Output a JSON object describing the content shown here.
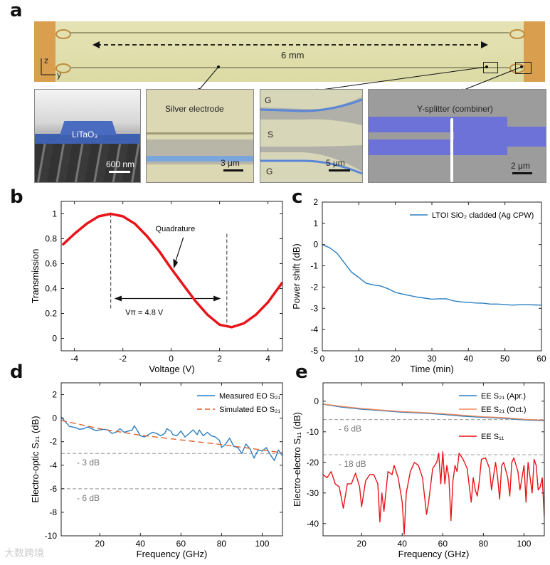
{
  "panel_labels": {
    "a": "a",
    "b": "b",
    "c": "c",
    "d": "d",
    "e": "e"
  },
  "panel_a": {
    "length_label": "6 mm",
    "axis_z": "z",
    "axis_y": "y",
    "sem1": {
      "material": "LiTaO₃",
      "scale": "600 nm"
    },
    "sem2": {
      "title": "Silver electrode",
      "scale": "3 μm"
    },
    "sem3": {
      "g_top": "G",
      "s": "S",
      "g_bottom": "G",
      "scale": "5 μm"
    },
    "sem4": {
      "title": "Y-splitter (combiner)",
      "scale": "2 μm"
    }
  },
  "watermark": "大数跨境",
  "colors": {
    "red": "#e8141a",
    "blue": "#2a7fc4",
    "orange": "#e0622a",
    "gray": "#aaaaaa"
  },
  "chart_data": [
    {
      "id": "b",
      "type": "line",
      "title": "",
      "xlabel": "Voltage (V)",
      "ylabel": "Transmission",
      "xlim": [
        -4.55,
        4.6
      ],
      "ylim": [
        -0.1,
        1.1
      ],
      "xticks": [
        -4,
        -2,
        0,
        2,
        4
      ],
      "yticks": [
        0,
        0.2,
        0.4,
        0.6,
        0.8,
        1
      ],
      "series": [
        {
          "name": "Transmission",
          "color": "#e8141a",
          "x": [
            -4.5,
            -4,
            -3.5,
            -3,
            -2.5,
            -2,
            -1.5,
            -1,
            -0.5,
            0,
            0.5,
            1,
            1.5,
            2,
            2.5,
            3,
            3.5,
            4,
            4.6
          ],
          "y": [
            0.75,
            0.84,
            0.92,
            0.98,
            1.0,
            0.98,
            0.92,
            0.82,
            0.7,
            0.56,
            0.43,
            0.3,
            0.19,
            0.11,
            0.09,
            0.12,
            0.19,
            0.29,
            0.45
          ]
        }
      ],
      "annotations": {
        "quadrature": "Quadrature",
        "vpi": "Vπ = 4.8 V",
        "vlines": [
          -2.5,
          2.3
        ]
      }
    },
    {
      "id": "c",
      "type": "line",
      "title": "",
      "xlabel": "Time (min)",
      "ylabel": "Power shift (dB)",
      "xlim": [
        0,
        60
      ],
      "ylim": [
        -5,
        2
      ],
      "xticks": [
        0,
        10,
        20,
        30,
        40,
        50,
        60
      ],
      "yticks": [
        -5,
        -4,
        -3,
        -2,
        -1,
        0,
        1,
        2
      ],
      "legend": "top-right",
      "series": [
        {
          "name": "LTOI SiO₂ cladded (Ag CPW)",
          "color": "#2a7fc4",
          "x": [
            0,
            2,
            4,
            6,
            8,
            10,
            12,
            14,
            16,
            18,
            20,
            22,
            24,
            26,
            28,
            30,
            32,
            34,
            36,
            38,
            40,
            42,
            44,
            46,
            48,
            50,
            52,
            54,
            56,
            58,
            60
          ],
          "y": [
            0,
            -0.15,
            -0.4,
            -0.85,
            -1.3,
            -1.55,
            -1.82,
            -1.9,
            -1.95,
            -2.08,
            -2.25,
            -2.33,
            -2.4,
            -2.47,
            -2.52,
            -2.57,
            -2.55,
            -2.55,
            -2.65,
            -2.7,
            -2.72,
            -2.75,
            -2.76,
            -2.8,
            -2.8,
            -2.82,
            -2.85,
            -2.83,
            -2.83,
            -2.84,
            -2.85
          ]
        }
      ]
    },
    {
      "id": "d",
      "type": "line",
      "title": "",
      "xlabel": "Frequency (GHz)",
      "ylabel": "Electro-optic S₂₁ (dB)",
      "xlim": [
        1,
        110
      ],
      "ylim": [
        -10,
        3
      ],
      "xticks": [
        20,
        40,
        60,
        80,
        100
      ],
      "yticks": [
        -10,
        -8,
        -6,
        -4,
        -2,
        0,
        2
      ],
      "legend": "top-right",
      "hlines": [
        {
          "y": -3,
          "label": "- 3 dB"
        },
        {
          "y": -6,
          "label": "- 6 dB"
        }
      ],
      "series": [
        {
          "name": "Measured EO S₂₁",
          "color": "#2a7fc4",
          "dash": false,
          "x": [
            1,
            3,
            5,
            8,
            10,
            12,
            14,
            16,
            18,
            20,
            22,
            24,
            26,
            28,
            30,
            32,
            34,
            36,
            37,
            38,
            40,
            42,
            44,
            46,
            48,
            50,
            52,
            53,
            55,
            56,
            58,
            60,
            62,
            64,
            66,
            68,
            69,
            71,
            73,
            75,
            77,
            79,
            80,
            82,
            84,
            86,
            88,
            90,
            92,
            94,
            96,
            98,
            100,
            102,
            104,
            106,
            108,
            110
          ],
          "y": [
            0.1,
            -0.3,
            -0.7,
            -0.8,
            -0.95,
            -0.9,
            -0.75,
            -0.9,
            -1.05,
            -1.0,
            -0.95,
            -1.0,
            -1.3,
            -1.2,
            -0.9,
            -1.2,
            -1.1,
            -1.0,
            -0.65,
            -0.9,
            -1.5,
            -1.6,
            -1.4,
            -1.2,
            -1.3,
            -1.5,
            -1.3,
            -0.9,
            -1.1,
            -1.4,
            -1.5,
            -1.1,
            -1.6,
            -1.3,
            -1.0,
            -1.4,
            -1.0,
            -1.5,
            -1.2,
            -1.5,
            -1.6,
            -1.9,
            -2.5,
            -2.2,
            -1.7,
            -2.4,
            -2.5,
            -3.0,
            -2.2,
            -2.6,
            -3.4,
            -2.7,
            -2.8,
            -2.5,
            -3.1,
            -3.6,
            -2.7,
            -3.2
          ]
        },
        {
          "name": "Simulated EO S₂₁",
          "color": "#e0622a",
          "dash": true,
          "x": [
            1,
            20,
            40,
            60,
            80,
            100,
            110
          ],
          "y": [
            -0.2,
            -0.9,
            -1.45,
            -1.85,
            -2.25,
            -2.7,
            -2.95
          ]
        }
      ]
    },
    {
      "id": "e",
      "type": "line",
      "title": "",
      "xlabel": "Frequency (GHz)",
      "ylabel": "Electro-electro S₁₁ (dB)",
      "xlim": [
        1,
        110
      ],
      "ylim": [
        -44,
        6
      ],
      "xticks": [
        20,
        40,
        60,
        80,
        100
      ],
      "yticks": [
        -40,
        -30,
        -20,
        -10,
        0
      ],
      "legend": "top-right",
      "hlines": [
        {
          "y": -6,
          "label": "- 6 dB"
        },
        {
          "y": -17.5,
          "label": "- 18 dB"
        }
      ],
      "series": [
        {
          "name": "EE S₂₁ (Apr.)",
          "color": "#2a7fc4",
          "x": [
            1,
            10,
            20,
            30,
            40,
            50,
            60,
            70,
            80,
            90,
            100,
            110
          ],
          "y": [
            -1,
            -1.9,
            -2.6,
            -3.1,
            -3.6,
            -3.9,
            -4.3,
            -4.9,
            -5.3,
            -5.6,
            -6.1,
            -6.4
          ]
        },
        {
          "name": "EE S₂₁ (Oct.)",
          "color": "#f08a5d",
          "x": [
            1,
            10,
            20,
            30,
            40,
            50,
            60,
            70,
            80,
            90,
            100,
            110
          ],
          "y": [
            -0.9,
            -1.7,
            -2.4,
            -2.9,
            -3.4,
            -3.7,
            -4.1,
            -4.6,
            -5.1,
            -5.4,
            -5.9,
            -6.2
          ]
        },
        {
          "name": "EE S₁₁",
          "color": "#e8141a",
          "x": [
            1,
            3,
            5,
            7,
            9,
            11,
            13,
            15,
            17,
            19,
            20,
            22,
            24,
            26,
            28,
            29,
            30,
            31,
            33,
            35,
            36,
            38,
            40,
            41,
            42,
            44,
            46,
            48,
            50,
            52,
            53,
            55,
            57,
            58,
            59,
            60,
            61,
            62,
            63,
            64,
            65,
            66,
            67,
            68,
            70,
            72,
            74,
            75,
            76,
            77,
            78,
            79,
            81,
            83,
            84,
            86,
            87,
            88,
            89,
            90,
            92,
            93,
            94,
            95,
            97,
            98,
            100,
            101,
            102,
            104,
            105,
            106,
            107,
            108,
            109,
            110
          ],
          "y": [
            -24,
            -25,
            -23,
            -27,
            -28,
            -35,
            -27,
            -27,
            -23.5,
            -28,
            -34.5,
            -26,
            -24,
            -24,
            -27,
            -39.5,
            -30,
            -36,
            -23,
            -24,
            -21,
            -25,
            -33,
            -43.5,
            -30,
            -23,
            -20,
            -21,
            -25,
            -37,
            -33,
            -22,
            -20,
            -17,
            -27,
            -16.5,
            -27,
            -21,
            -25,
            -39,
            -26,
            -21,
            -23,
            -17,
            -19,
            -22,
            -33,
            -25,
            -29,
            -31,
            -26,
            -19,
            -18.5,
            -22,
            -29,
            -20,
            -25,
            -32,
            -21,
            -20,
            -25,
            -31,
            -20,
            -18.5,
            -23,
            -29,
            -21,
            -33,
            -20,
            -30,
            -19,
            -21,
            -29,
            -28,
            -25,
            -38
          ]
        }
      ]
    }
  ]
}
